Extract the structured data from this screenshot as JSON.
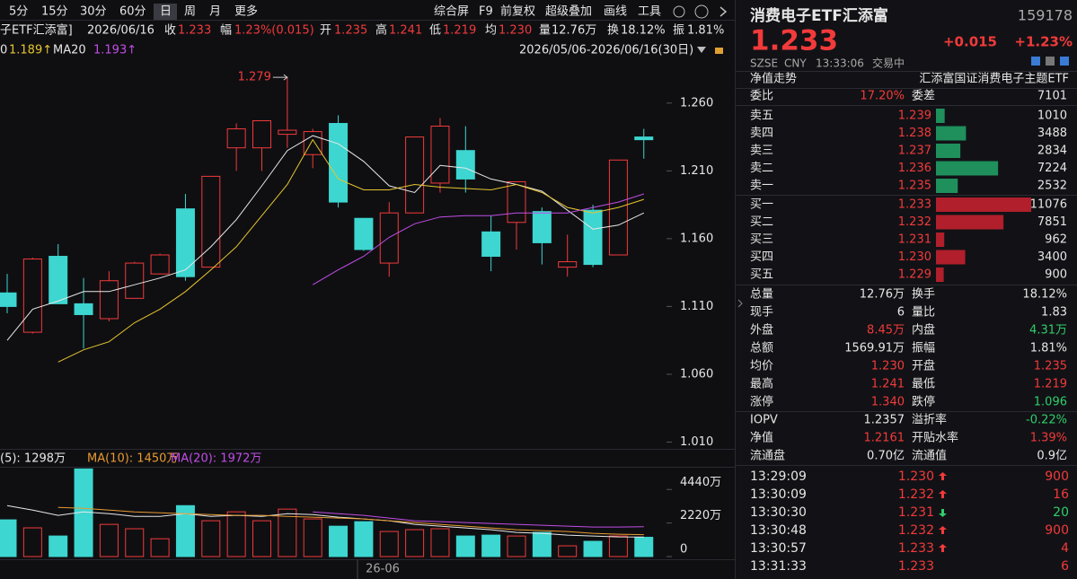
{
  "toolbar": {
    "periods": [
      "5分",
      "15分",
      "30分",
      "60分",
      "日",
      "周",
      "月",
      "更多"
    ],
    "tools": [
      "综合屏",
      "F9",
      "前复权",
      "超级叠加",
      "画线",
      "工具"
    ]
  },
  "quote_bar": {
    "name": "子ETF汇添富]",
    "date": "2026/06/16",
    "items": [
      {
        "label": "收",
        "value": "1.233"
      },
      {
        "label": "幅",
        "value": "1.23%(0.015)"
      },
      {
        "label": "开",
        "value": "1.235"
      },
      {
        "label": "高",
        "value": "1.241"
      },
      {
        "label": "低",
        "value": "1.219"
      },
      {
        "label": "均",
        "value": "1.230"
      },
      {
        "label": "量",
        "value": "12.76万"
      },
      {
        "label": "换",
        "value": "18.12%"
      },
      {
        "label": "振",
        "value": "1.81%"
      }
    ]
  },
  "chart_data": {
    "type": "candlestick",
    "range": "2026/05/06-2026/06/16(30日)",
    "x_label": "26-06",
    "ylim": [
      1.005,
      1.293
    ],
    "yticks": [
      {
        "value": 1.26,
        "label": "1.260"
      },
      {
        "value": 1.21,
        "label": "1.210"
      },
      {
        "value": 1.16,
        "label": "1.160"
      },
      {
        "value": 1.11,
        "label": "1.110"
      },
      {
        "value": 1.06,
        "label": "1.060"
      },
      {
        "value": 1.01,
        "label": "1.010"
      }
    ],
    "up_color": "#f23a3a",
    "down_color": "#3dd6d0",
    "candles": [
      {
        "open": 1.12,
        "high": 1.134,
        "low": 1.105,
        "close": 1.11
      },
      {
        "open": 1.091,
        "high": 1.146,
        "low": 1.09,
        "close": 1.145
      },
      {
        "open": 1.147,
        "high": 1.156,
        "low": 1.112,
        "close": 1.112
      },
      {
        "open": 1.112,
        "high": 1.131,
        "low": 1.079,
        "close": 1.104
      },
      {
        "open": 1.101,
        "high": 1.136,
        "low": 1.099,
        "close": 1.129
      },
      {
        "open": 1.116,
        "high": 1.143,
        "low": 1.116,
        "close": 1.142
      },
      {
        "open": 1.134,
        "high": 1.149,
        "low": 1.134,
        "close": 1.148
      },
      {
        "open": 1.182,
        "high": 1.193,
        "low": 1.129,
        "close": 1.132
      },
      {
        "open": 1.139,
        "high": 1.206,
        "low": 1.139,
        "close": 1.206
      },
      {
        "open": 1.227,
        "high": 1.245,
        "low": 1.21,
        "close": 1.241
      },
      {
        "open": 1.227,
        "high": 1.247,
        "low": 1.21,
        "close": 1.247
      },
      {
        "open": 1.237,
        "high": 1.279,
        "low": 1.227,
        "close": 1.24
      },
      {
        "open": 1.222,
        "high": 1.241,
        "low": 1.212,
        "close": 1.239
      },
      {
        "open": 1.245,
        "high": 1.251,
        "low": 1.183,
        "close": 1.187
      },
      {
        "open": 1.175,
        "high": 1.175,
        "low": 1.151,
        "close": 1.152
      },
      {
        "open": 1.142,
        "high": 1.187,
        "low": 1.132,
        "close": 1.179
      },
      {
        "open": 1.179,
        "high": 1.235,
        "low": 1.179,
        "close": 1.235
      },
      {
        "open": 1.201,
        "high": 1.249,
        "low": 1.194,
        "close": 1.243
      },
      {
        "open": 1.225,
        "high": 1.243,
        "low": 1.194,
        "close": 1.204
      },
      {
        "open": 1.165,
        "high": 1.177,
        "low": 1.136,
        "close": 1.147
      },
      {
        "open": 1.172,
        "high": 1.202,
        "low": 1.152,
        "close": 1.202
      },
      {
        "open": 1.18,
        "high": 1.183,
        "low": 1.141,
        "close": 1.157
      },
      {
        "open": 1.139,
        "high": 1.163,
        "low": 1.132,
        "close": 1.143
      },
      {
        "open": 1.181,
        "high": 1.185,
        "low": 1.139,
        "close": 1.141
      },
      {
        "open": 1.148,
        "high": 1.218,
        "low": 1.148,
        "close": 1.218
      },
      {
        "open": 1.235,
        "high": 1.241,
        "low": 1.219,
        "close": 1.233
      }
    ],
    "series": [
      {
        "name": null,
        "color": "#e8e8e8",
        "values": [
          1.085,
          1.108,
          1.114,
          1.121,
          1.121,
          1.126,
          1.131,
          1.137,
          1.154,
          1.174,
          1.199,
          1.225,
          1.236,
          1.23,
          1.217,
          1.199,
          1.194,
          1.214,
          1.212,
          1.204,
          1.2,
          1.195,
          1.181,
          1.167,
          1.17,
          1.179
        ]
      },
      {
        "name": "0",
        "legend_value": "1.189↑",
        "color": "#e6c52e",
        "values": [
          null,
          null,
          1.069,
          1.078,
          1.084,
          1.098,
          1.108,
          1.121,
          1.137,
          1.154,
          1.177,
          1.2,
          1.233,
          1.204,
          1.196,
          1.196,
          1.2,
          1.198,
          1.197,
          1.196,
          1.2,
          1.194,
          1.183,
          1.179,
          1.183,
          1.189
        ]
      },
      {
        "name": "MA20",
        "legend_value": "1.193↑",
        "color": "#c24de6",
        "values": [
          null,
          null,
          null,
          null,
          null,
          null,
          null,
          null,
          null,
          null,
          null,
          null,
          1.126,
          1.137,
          1.147,
          1.161,
          1.171,
          1.176,
          1.177,
          1.177,
          1.179,
          1.179,
          1.179,
          1.183,
          1.187,
          1.193
        ]
      }
    ],
    "volume": {
      "ylim": [
        0,
        6000
      ],
      "yticks": [
        {
          "value": 4440,
          "label": "4440万"
        },
        {
          "value": 2220,
          "label": "2220万"
        },
        0
      ],
      "values": [
        2430,
        1900,
        1360,
        5800,
        2130,
        1840,
        1180,
        3370,
        2370,
        2960,
        2370,
        3140,
        2490,
        2010,
        2310,
        1660,
        1780,
        1840,
        1360,
        1420,
        1360,
        1600,
        710,
        1010,
        1360,
        1276
      ],
      "series": [
        {
          "name": "(5): 1298万",
          "color": "#e8e8e8",
          "values": [
            3375,
            3079,
            2724,
            2960,
            2842,
            2664,
            2664,
            2842,
            2664,
            2724,
            2664,
            2842,
            2783,
            2605,
            2487,
            2368,
            2131,
            2013,
            1895,
            1776,
            1599,
            1539,
            1421,
            1362,
            1303,
            1298
          ]
        },
        {
          "name": "MA(10): 1450万",
          "color": "#e89a30",
          "values": [
            null,
            null,
            3256,
            3197,
            3079,
            2960,
            2901,
            2842,
            2783,
            2724,
            2724,
            2664,
            2605,
            2546,
            2487,
            2368,
            2250,
            2131,
            2013,
            1895,
            1776,
            1717,
            1658,
            1539,
            1480,
            1450
          ]
        },
        {
          "name": "MA(20): 1972万",
          "color": "#c24de6",
          "values": [
            null,
            null,
            null,
            null,
            null,
            null,
            null,
            null,
            null,
            null,
            null,
            null,
            2960,
            2842,
            2724,
            2546,
            2368,
            2309,
            2250,
            2191,
            2131,
            2072,
            2013,
            1954,
            1954,
            1972
          ]
        }
      ]
    }
  },
  "quote": {
    "name": "消费电子ETF汇添富",
    "code": "159178",
    "price": "1.233",
    "change": "+0.015",
    "change_pct": "+1.23%",
    "exchange": "SZSE",
    "currency": "CNY",
    "time": "13:33:06",
    "status": "交易中"
  },
  "nav_row": {
    "label": "净值走势",
    "fund": "汇添富国证消费电子主题ETF"
  },
  "ratio_row": [
    {
      "label": "委比",
      "value": "17.20%",
      "tone": "up"
    },
    {
      "label": "委差",
      "value": "7101"
    }
  ],
  "order_book": {
    "asks": [
      {
        "label": "卖五",
        "price": "1.239",
        "volume": 1010
      },
      {
        "label": "卖四",
        "price": "1.238",
        "volume": 3488
      },
      {
        "label": "卖三",
        "price": "1.237",
        "volume": 2834
      },
      {
        "label": "卖二",
        "price": "1.236",
        "volume": 7224
      },
      {
        "label": "卖一",
        "price": "1.235",
        "volume": 2532
      }
    ],
    "bids": [
      {
        "label": "买一",
        "price": "1.233",
        "volume": 11076
      },
      {
        "label": "买二",
        "price": "1.232",
        "volume": 7851
      },
      {
        "label": "买三",
        "price": "1.231",
        "volume": 962
      },
      {
        "label": "买四",
        "price": "1.230",
        "volume": 3400
      },
      {
        "label": "买五",
        "price": "1.229",
        "volume": 900
      }
    ],
    "ask_color": "#1f8f5c",
    "bid_color": "#b01f2b"
  },
  "stats": [
    [
      {
        "label": "总量",
        "value": "12.76万"
      },
      {
        "label": "换手",
        "value": "18.12%"
      }
    ],
    [
      {
        "label": "现手",
        "value": "6"
      },
      {
        "label": "量比",
        "value": "1.83"
      }
    ],
    [
      {
        "label": "外盘",
        "value": "8.45万",
        "tone": "up"
      },
      {
        "label": "内盘",
        "value": "4.31万",
        "tone": "down"
      }
    ],
    [
      {
        "label": "总额",
        "value": "1569.91万"
      },
      {
        "label": "振幅",
        "value": "1.81%"
      }
    ],
    [
      {
        "label": "均价",
        "value": "1.230",
        "tone": "up"
      },
      {
        "label": "开盘",
        "value": "1.235",
        "tone": "up"
      }
    ],
    [
      {
        "label": "最高",
        "value": "1.241",
        "tone": "up"
      },
      {
        "label": "最低",
        "value": "1.219",
        "tone": "up"
      }
    ],
    [
      {
        "label": "涨停",
        "value": "1.340",
        "tone": "up"
      },
      {
        "label": "跌停",
        "value": "1.096",
        "tone": "down"
      }
    ]
  ],
  "iopv": [
    [
      {
        "label": "IOPV",
        "value": "1.2357"
      },
      {
        "label": "溢折率",
        "value": "-0.22%",
        "tone": "down"
      }
    ],
    [
      {
        "label": "净值",
        "value": "1.2161",
        "tone": "up"
      },
      {
        "label": "开贴水率",
        "value": "1.39%",
        "tone": "up"
      }
    ],
    [
      {
        "label": "流通盘",
        "value": "0.70亿"
      },
      {
        "label": "流通值",
        "value": "0.9亿"
      }
    ]
  ],
  "ticks": [
    {
      "time": "13:29:09",
      "price": "1.230",
      "dir": "up",
      "volume": "900",
      "tone": "up"
    },
    {
      "time": "13:30:09",
      "price": "1.232",
      "dir": "up",
      "volume": "16",
      "tone": "up"
    },
    {
      "time": "13:30:30",
      "price": "1.231",
      "dir": "down",
      "volume": "20",
      "tone": "down"
    },
    {
      "time": "13:30:48",
      "price": "1.232",
      "dir": "up",
      "volume": "900",
      "tone": "up"
    },
    {
      "time": "13:30:57",
      "price": "1.233",
      "dir": "up",
      "volume": "4",
      "tone": "up"
    },
    {
      "time": "13:31:33",
      "price": "1.233",
      "dir": null,
      "volume": "6",
      "tone": "up"
    }
  ]
}
